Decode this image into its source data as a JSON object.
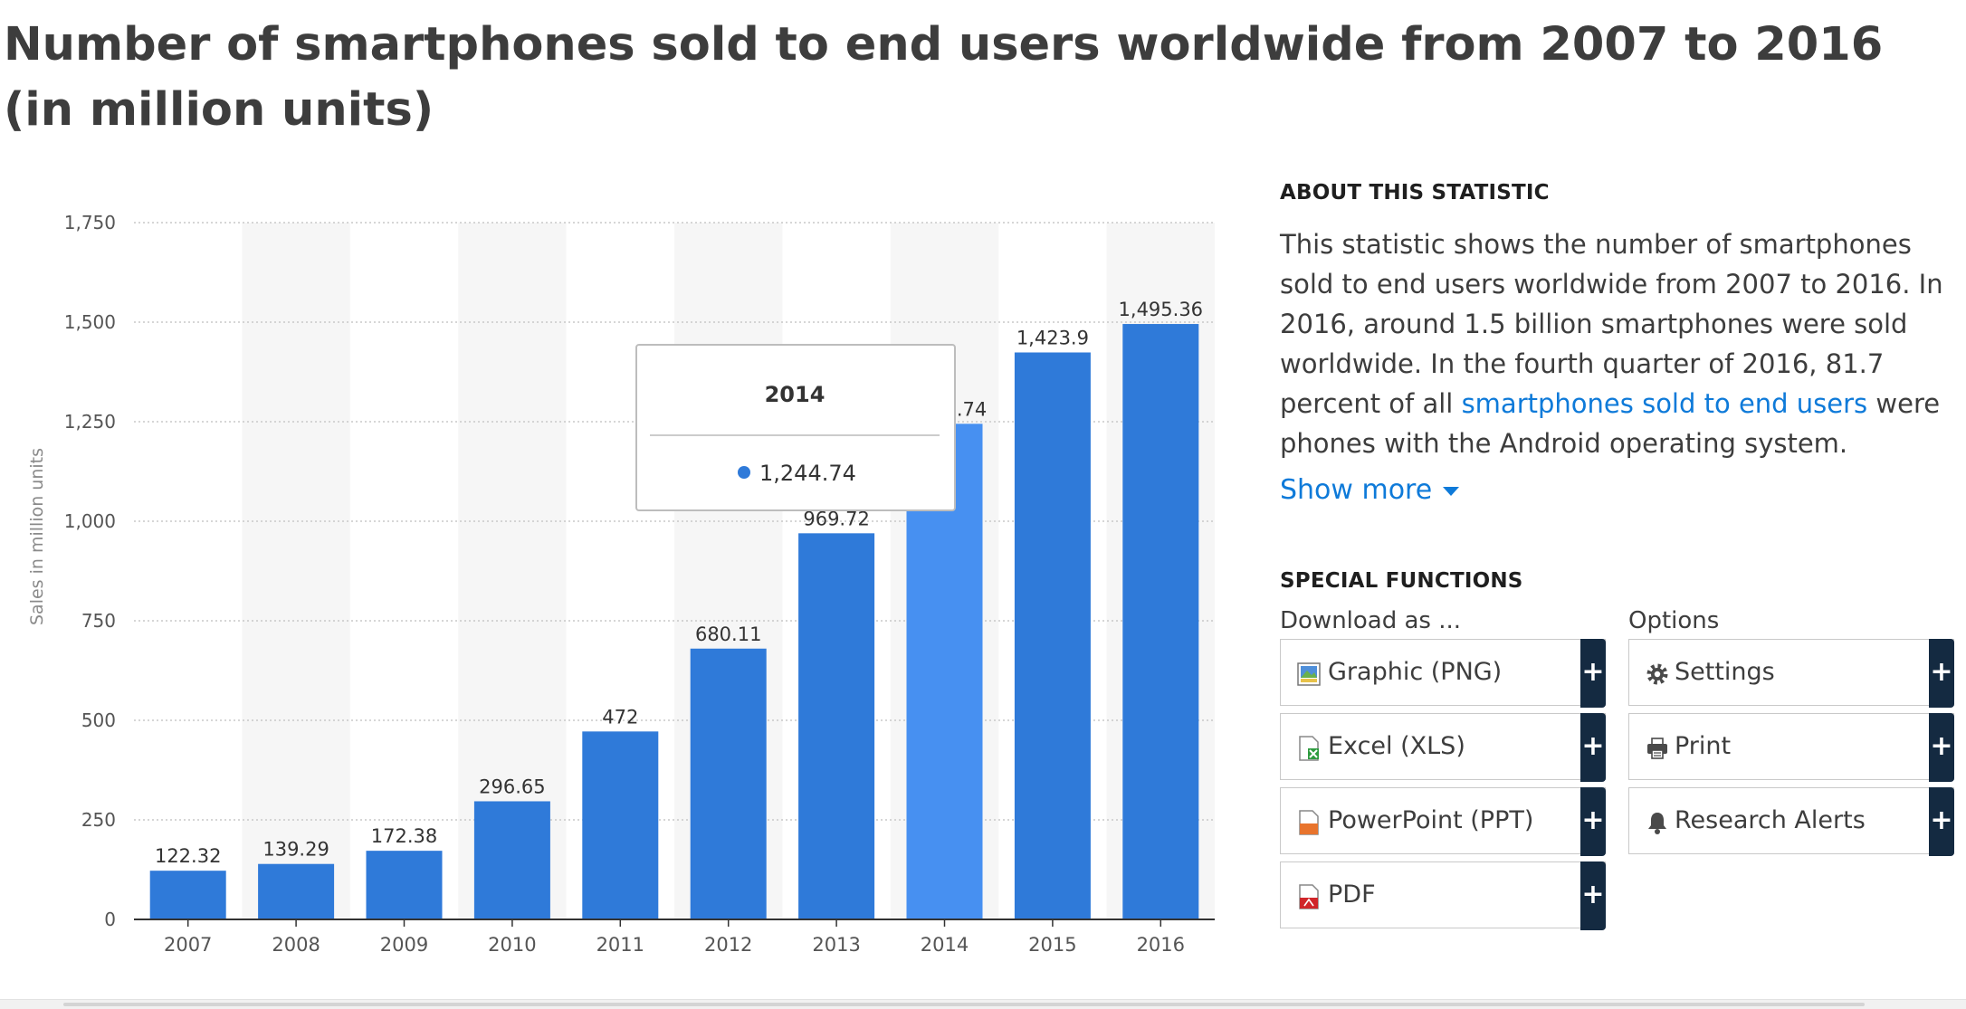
{
  "page": {
    "title": "Number of smartphones sold to end users worldwide from 2007 to 2016 (in million units)"
  },
  "chart_data": {
    "type": "bar",
    "categories": [
      "2007",
      "2008",
      "2009",
      "2010",
      "2011",
      "2012",
      "2013",
      "2014",
      "2015",
      "2016"
    ],
    "values": [
      122.32,
      139.29,
      172.38,
      296.65,
      472,
      680.11,
      969.72,
      1244.74,
      1423.9,
      1495.36
    ],
    "value_labels": [
      "122.32",
      "139.29",
      "172.38",
      "296.65",
      "472",
      "680.11",
      "969.72",
      "1,244.74",
      "1,423.9",
      "1,495.36"
    ],
    "ylabel": "Sales in million units",
    "ylim": [
      0,
      1750
    ],
    "yticks": [
      0,
      250,
      500,
      750,
      1000,
      1250,
      1500,
      1750
    ],
    "ytick_labels": [
      "0",
      "250",
      "500",
      "750",
      "1,000",
      "1,250",
      "1,500",
      "1,750"
    ],
    "bar_color": "#2f7ad9",
    "highlight_color": "#4790f1",
    "highlighted_category": "2014",
    "grid": true,
    "tooltip": {
      "title": "2014",
      "value": "1,244.74"
    }
  },
  "sidebar": {
    "about_heading": "ABOUT THIS STATISTIC",
    "about_text_before_link": "This statistic shows the number of smartphones sold to end users worldwide from 2007 to 2016. In 2016, around 1.5 billion smartphones were sold worldwide. In the fourth quarter of 2016, 81.7 percent of all ",
    "about_link": "smartphones sold to end users",
    "about_text_after_link": " were phones with the Android operating system.",
    "show_more": "Show more",
    "special_heading": "SPECIAL FUNCTIONS",
    "download_label": "Download as ...",
    "options_label": "Options",
    "download_buttons": [
      {
        "label": "Graphic (PNG)",
        "icon": "image-file-icon"
      },
      {
        "label": "Excel (XLS)",
        "icon": "excel-file-icon"
      },
      {
        "label": "PowerPoint (PPT)",
        "icon": "powerpoint-file-icon"
      },
      {
        "label": "PDF",
        "icon": "pdf-file-icon"
      }
    ],
    "option_buttons": [
      {
        "label": "Settings",
        "icon": "gear-icon"
      },
      {
        "label": "Print",
        "icon": "printer-icon"
      },
      {
        "label": "Research Alerts",
        "icon": "bell-icon"
      }
    ],
    "plus_symbol": "+"
  }
}
